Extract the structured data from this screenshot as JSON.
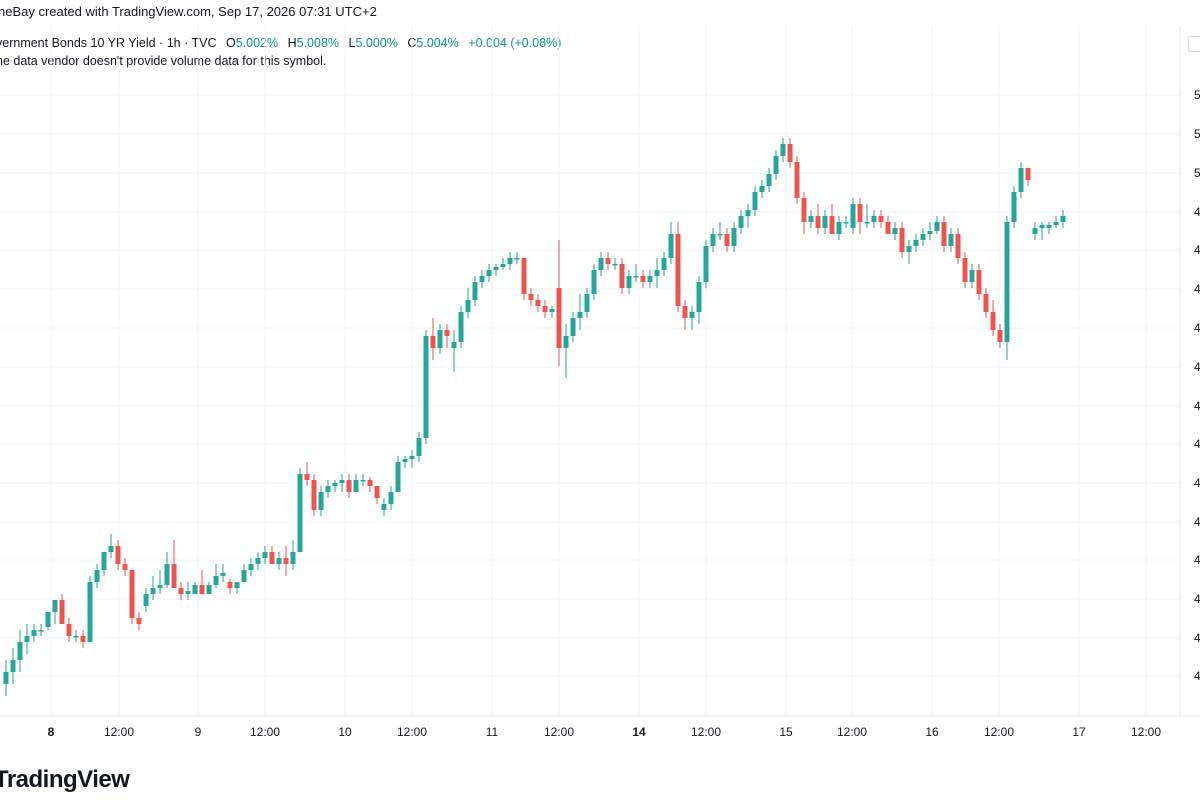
{
  "header": {
    "attribution": "heBay created with TradingView.com, Sep 17, 2026 07:31 UTC+2"
  },
  "legend": {
    "symbol": "vernment Bonds 10 YR Yield · 1h · TVC",
    "o_label": "O",
    "o_value": "5.002%",
    "h_label": "H",
    "h_value": "5.008%",
    "l_label": "L",
    "l_value": "5.000%",
    "c_label": "C",
    "c_value": "5.004%",
    "change": "+0.004 (+0.08%)"
  },
  "notice": "he data vendor doesn't provide volume data for this symbol.",
  "brand": "TradingView",
  "colors": {
    "up": "#26a69a",
    "down": "#ef5350",
    "grid": "#f0f3fa",
    "text": "#131722"
  },
  "chart_data": {
    "type": "candlestick",
    "title": "",
    "xlabel": "",
    "ylabel": "",
    "x_ticks": [
      "8",
      "12:00",
      "9",
      "12:00",
      "10",
      "12:00",
      "11",
      "12:00",
      "14",
      "12:00",
      "15",
      "12:00",
      "16",
      "12:00",
      "17",
      "12:00"
    ],
    "x_tick_bold": [
      "8",
      "14"
    ],
    "y_ticks_visible": [
      "5",
      "5",
      "5",
      "4",
      "4",
      "4",
      "4",
      "4",
      "4",
      "4",
      "4",
      "4",
      "4",
      "4",
      "4",
      "4"
    ],
    "y_range_relative": [
      0,
      100
    ],
    "candles": [
      {
        "o": 2.0,
        "h": 6.0,
        "l": 0.0,
        "c": 4.0
      },
      {
        "o": 4.0,
        "h": 8.0,
        "l": 2.0,
        "c": 6.0
      },
      {
        "o": 6.0,
        "h": 11.0,
        "l": 4.0,
        "c": 9.0
      },
      {
        "o": 9.0,
        "h": 12.0,
        "l": 7.0,
        "c": 10.0
      },
      {
        "o": 10.0,
        "h": 12.0,
        "l": 9.0,
        "c": 11.0
      },
      {
        "o": 11.0,
        "h": 12.0,
        "l": 10.0,
        "c": 11.0
      },
      {
        "o": 11.5,
        "h": 14.0,
        "l": 11.0,
        "c": 14.0
      },
      {
        "o": 14.0,
        "h": 16.0,
        "l": 12.0,
        "c": 16.0
      },
      {
        "o": 16.0,
        "h": 17.0,
        "l": 12.0,
        "c": 12.0
      },
      {
        "o": 12.0,
        "h": 13.0,
        "l": 9.0,
        "c": 10.0
      },
      {
        "o": 10.0,
        "h": 11.0,
        "l": 9.0,
        "c": 10.0
      },
      {
        "o": 10.0,
        "h": 11.0,
        "l": 8.0,
        "c": 9.0
      },
      {
        "o": 9.0,
        "h": 20.0,
        "l": 9.0,
        "c": 19.0
      },
      {
        "o": 19.0,
        "h": 22.0,
        "l": 18.0,
        "c": 21.0
      },
      {
        "o": 21.0,
        "h": 24.0,
        "l": 20.0,
        "c": 24.0
      },
      {
        "o": 24.0,
        "h": 27.0,
        "l": 23.0,
        "c": 25.0
      },
      {
        "o": 25.0,
        "h": 26.0,
        "l": 21.0,
        "c": 22.0
      },
      {
        "o": 22.0,
        "h": 23.0,
        "l": 20.0,
        "c": 21.0
      },
      {
        "o": 21.0,
        "h": 21.0,
        "l": 12.0,
        "c": 13.0
      },
      {
        "o": 13.0,
        "h": 14.0,
        "l": 11.0,
        "c": 12.0
      },
      {
        "o": 15.0,
        "h": 18.0,
        "l": 14.0,
        "c": 17.0
      },
      {
        "o": 17.0,
        "h": 20.0,
        "l": 16.0,
        "c": 18.0
      },
      {
        "o": 18.0,
        "h": 21.0,
        "l": 17.0,
        "c": 18.5
      },
      {
        "o": 18.5,
        "h": 24.0,
        "l": 18.0,
        "c": 22.0
      },
      {
        "o": 22.0,
        "h": 26.0,
        "l": 18.0,
        "c": 18.0
      },
      {
        "o": 18.0,
        "h": 19.0,
        "l": 16.0,
        "c": 17.0
      },
      {
        "o": 17.0,
        "h": 19.0,
        "l": 16.0,
        "c": 17.5
      },
      {
        "o": 17.0,
        "h": 19.0,
        "l": 17.0,
        "c": 18.5
      },
      {
        "o": 18.5,
        "h": 21.0,
        "l": 17.0,
        "c": 17.0
      },
      {
        "o": 17.0,
        "h": 19.0,
        "l": 17.0,
        "c": 18.5
      },
      {
        "o": 18.5,
        "h": 22.0,
        "l": 18.0,
        "c": 20.0
      },
      {
        "o": 20.0,
        "h": 22.0,
        "l": 19.0,
        "c": 20.5
      },
      {
        "o": 19.0,
        "h": 19.5,
        "l": 17.0,
        "c": 18.0
      },
      {
        "o": 18.0,
        "h": 19.0,
        "l": 17.0,
        "c": 19.0
      },
      {
        "o": 19.0,
        "h": 22.0,
        "l": 19.0,
        "c": 21.0
      },
      {
        "o": 21.0,
        "h": 23.0,
        "l": 20.0,
        "c": 22.0
      },
      {
        "o": 22.0,
        "h": 24.0,
        "l": 21.0,
        "c": 23.0
      },
      {
        "o": 23.0,
        "h": 25.0,
        "l": 22.0,
        "c": 24.0
      },
      {
        "o": 24.0,
        "h": 25.0,
        "l": 22.0,
        "c": 22.0
      },
      {
        "o": 22.0,
        "h": 24.0,
        "l": 21.0,
        "c": 23.0
      },
      {
        "o": 23.0,
        "h": 25.0,
        "l": 20.0,
        "c": 22.0
      },
      {
        "o": 22.0,
        "h": 26.0,
        "l": 21.0,
        "c": 24.0
      },
      {
        "o": 24.0,
        "h": 38.0,
        "l": 24.0,
        "c": 37.0
      },
      {
        "o": 37.0,
        "h": 39.0,
        "l": 35.0,
        "c": 36.0
      },
      {
        "o": 36.0,
        "h": 37.0,
        "l": 30.0,
        "c": 31.0
      },
      {
        "o": 31.0,
        "h": 35.0,
        "l": 30.0,
        "c": 34.0
      },
      {
        "o": 34.0,
        "h": 36.0,
        "l": 33.0,
        "c": 35.0
      },
      {
        "o": 35.0,
        "h": 36.0,
        "l": 34.0,
        "c": 35.5
      },
      {
        "o": 35.5,
        "h": 37.0,
        "l": 34.0,
        "c": 36.0
      },
      {
        "o": 36.0,
        "h": 37.0,
        "l": 33.0,
        "c": 34.0
      },
      {
        "o": 34.0,
        "h": 37.0,
        "l": 34.0,
        "c": 36.0
      },
      {
        "o": 36.0,
        "h": 37.0,
        "l": 35.0,
        "c": 36.0
      },
      {
        "o": 36.0,
        "h": 36.5,
        "l": 34.0,
        "c": 35.0
      },
      {
        "o": 35.0,
        "h": 35.0,
        "l": 32.0,
        "c": 33.0
      },
      {
        "o": 31.0,
        "h": 33.0,
        "l": 30.0,
        "c": 32.0
      },
      {
        "o": 32.0,
        "h": 35.0,
        "l": 31.0,
        "c": 34.0
      },
      {
        "o": 34.0,
        "h": 40.0,
        "l": 34.0,
        "c": 39.0
      },
      {
        "o": 39.0,
        "h": 40.0,
        "l": 38.0,
        "c": 39.5
      },
      {
        "o": 39.5,
        "h": 41.0,
        "l": 38.0,
        "c": 40.0
      },
      {
        "o": 40.0,
        "h": 44.0,
        "l": 39.0,
        "c": 43.0
      },
      {
        "o": 43.0,
        "h": 61.0,
        "l": 42.0,
        "c": 60.0
      },
      {
        "o": 60.0,
        "h": 63.0,
        "l": 56.0,
        "c": 58.0
      },
      {
        "o": 58.0,
        "h": 62.0,
        "l": 57.0,
        "c": 61.0
      },
      {
        "o": 61.0,
        "h": 62.0,
        "l": 58.0,
        "c": 60.0
      },
      {
        "o": 58.0,
        "h": 61.0,
        "l": 54.0,
        "c": 59.0
      },
      {
        "o": 59.0,
        "h": 65.0,
        "l": 58.0,
        "c": 64.0
      },
      {
        "o": 64.0,
        "h": 68.0,
        "l": 63.0,
        "c": 66.0
      },
      {
        "o": 66.0,
        "h": 70.0,
        "l": 65.0,
        "c": 69.0
      },
      {
        "o": 69.0,
        "h": 71.0,
        "l": 68.0,
        "c": 70.0
      },
      {
        "o": 70.0,
        "h": 72.0,
        "l": 69.0,
        "c": 71.0
      },
      {
        "o": 71.0,
        "h": 72.0,
        "l": 70.0,
        "c": 71.5
      },
      {
        "o": 71.5,
        "h": 73.0,
        "l": 71.0,
        "c": 72.0
      },
      {
        "o": 72.0,
        "h": 74.0,
        "l": 71.0,
        "c": 73.0
      },
      {
        "o": 73.0,
        "h": 74.0,
        "l": 72.0,
        "c": 73.0
      },
      {
        "o": 73.0,
        "h": 73.0,
        "l": 66.0,
        "c": 67.0
      },
      {
        "o": 67.0,
        "h": 68.0,
        "l": 65.0,
        "c": 66.0
      },
      {
        "o": 66.0,
        "h": 67.0,
        "l": 64.0,
        "c": 65.0
      },
      {
        "o": 65.0,
        "h": 66.0,
        "l": 63.0,
        "c": 64.0
      },
      {
        "o": 64.0,
        "h": 65.0,
        "l": 63.0,
        "c": 64.5
      },
      {
        "o": 68.0,
        "h": 76.0,
        "l": 55.0,
        "c": 58.0
      },
      {
        "o": 58.0,
        "h": 62.0,
        "l": 53.0,
        "c": 60.0
      },
      {
        "o": 60.0,
        "h": 64.0,
        "l": 59.0,
        "c": 63.0
      },
      {
        "o": 63.0,
        "h": 67.0,
        "l": 61.0,
        "c": 64.0
      },
      {
        "o": 64.0,
        "h": 68.0,
        "l": 63.0,
        "c": 67.0
      },
      {
        "o": 67.0,
        "h": 72.0,
        "l": 66.0,
        "c": 71.0
      },
      {
        "o": 71.0,
        "h": 74.0,
        "l": 70.0,
        "c": 73.0
      },
      {
        "o": 73.0,
        "h": 74.0,
        "l": 71.0,
        "c": 72.0
      },
      {
        "o": 72.0,
        "h": 73.0,
        "l": 71.0,
        "c": 72.0
      },
      {
        "o": 72.0,
        "h": 73.0,
        "l": 67.0,
        "c": 68.0
      },
      {
        "o": 68.0,
        "h": 71.0,
        "l": 67.0,
        "c": 70.0
      },
      {
        "o": 70.0,
        "h": 72.0,
        "l": 69.0,
        "c": 70.0
      },
      {
        "o": 70.0,
        "h": 71.0,
        "l": 68.0,
        "c": 69.0
      },
      {
        "o": 69.0,
        "h": 71.0,
        "l": 68.0,
        "c": 70.0
      },
      {
        "o": 70.0,
        "h": 73.0,
        "l": 68.0,
        "c": 71.0
      },
      {
        "o": 71.0,
        "h": 74.0,
        "l": 70.0,
        "c": 73.0
      },
      {
        "o": 73.0,
        "h": 79.0,
        "l": 72.0,
        "c": 77.0
      },
      {
        "o": 77.0,
        "h": 79.0,
        "l": 64.0,
        "c": 65.0
      },
      {
        "o": 65.0,
        "h": 66.0,
        "l": 61.0,
        "c": 63.0
      },
      {
        "o": 63.0,
        "h": 65.0,
        "l": 61.0,
        "c": 64.0
      },
      {
        "o": 64.0,
        "h": 70.0,
        "l": 62.0,
        "c": 69.0
      },
      {
        "o": 69.0,
        "h": 76.0,
        "l": 68.0,
        "c": 75.0
      },
      {
        "o": 75.0,
        "h": 78.0,
        "l": 74.0,
        "c": 77.0
      },
      {
        "o": 77.0,
        "h": 79.0,
        "l": 76.0,
        "c": 77.0
      },
      {
        "o": 77.0,
        "h": 78.0,
        "l": 74.0,
        "c": 75.0
      },
      {
        "o": 75.0,
        "h": 79.0,
        "l": 74.0,
        "c": 78.0
      },
      {
        "o": 78.0,
        "h": 81.0,
        "l": 77.0,
        "c": 80.0
      },
      {
        "o": 80.0,
        "h": 82.0,
        "l": 78.0,
        "c": 81.0
      },
      {
        "o": 81.0,
        "h": 85.0,
        "l": 80.0,
        "c": 84.0
      },
      {
        "o": 84.0,
        "h": 86.0,
        "l": 83.0,
        "c": 85.0
      },
      {
        "o": 85.0,
        "h": 88.0,
        "l": 84.0,
        "c": 87.0
      },
      {
        "o": 87.0,
        "h": 91.0,
        "l": 86.0,
        "c": 90.0
      },
      {
        "o": 90.0,
        "h": 93.0,
        "l": 89.0,
        "c": 92.0
      },
      {
        "o": 92.0,
        "h": 93.0,
        "l": 88.0,
        "c": 89.0
      },
      {
        "o": 89.0,
        "h": 90.0,
        "l": 82.0,
        "c": 83.0
      },
      {
        "o": 83.0,
        "h": 84.0,
        "l": 77.0,
        "c": 79.0
      },
      {
        "o": 79.0,
        "h": 81.0,
        "l": 78.0,
        "c": 80.0
      },
      {
        "o": 80.0,
        "h": 82.0,
        "l": 77.0,
        "c": 78.0
      },
      {
        "o": 78.0,
        "h": 81.0,
        "l": 77.0,
        "c": 80.0
      },
      {
        "o": 80.0,
        "h": 82.0,
        "l": 77.0,
        "c": 77.0
      },
      {
        "o": 77.0,
        "h": 80.0,
        "l": 76.0,
        "c": 79.0
      },
      {
        "o": 79.0,
        "h": 80.0,
        "l": 78.0,
        "c": 79.0
      },
      {
        "o": 78.0,
        "h": 83.0,
        "l": 77.0,
        "c": 82.0
      },
      {
        "o": 82.0,
        "h": 83.0,
        "l": 77.0,
        "c": 79.0
      },
      {
        "o": 79.0,
        "h": 82.0,
        "l": 78.0,
        "c": 79.0
      },
      {
        "o": 79.0,
        "h": 81.0,
        "l": 78.0,
        "c": 80.0
      },
      {
        "o": 80.0,
        "h": 81.0,
        "l": 78.0,
        "c": 79.0
      },
      {
        "o": 79.0,
        "h": 80.0,
        "l": 77.0,
        "c": 77.0
      },
      {
        "o": 77.0,
        "h": 79.0,
        "l": 76.0,
        "c": 78.0
      },
      {
        "o": 78.0,
        "h": 79.0,
        "l": 73.0,
        "c": 74.0
      },
      {
        "o": 74.0,
        "h": 76.0,
        "l": 72.0,
        "c": 75.0
      },
      {
        "o": 75.0,
        "h": 77.0,
        "l": 74.0,
        "c": 76.0
      },
      {
        "o": 76.0,
        "h": 78.0,
        "l": 75.0,
        "c": 77.0
      },
      {
        "o": 77.0,
        "h": 79.0,
        "l": 76.0,
        "c": 77.5
      },
      {
        "o": 77.5,
        "h": 80.0,
        "l": 77.0,
        "c": 79.0
      },
      {
        "o": 79.0,
        "h": 80.0,
        "l": 74.0,
        "c": 75.0
      },
      {
        "o": 75.0,
        "h": 78.0,
        "l": 74.0,
        "c": 77.0
      },
      {
        "o": 77.0,
        "h": 78.0,
        "l": 72.0,
        "c": 73.0
      },
      {
        "o": 73.0,
        "h": 74.0,
        "l": 68.0,
        "c": 69.0
      },
      {
        "o": 69.0,
        "h": 72.0,
        "l": 68.0,
        "c": 71.0
      },
      {
        "o": 71.0,
        "h": 72.0,
        "l": 66.0,
        "c": 67.0
      },
      {
        "o": 67.0,
        "h": 68.0,
        "l": 63.0,
        "c": 64.0
      },
      {
        "o": 64.0,
        "h": 66.0,
        "l": 60.0,
        "c": 61.0
      },
      {
        "o": 61.0,
        "h": 62.0,
        "l": 58.0,
        "c": 59.0
      },
      {
        "o": 59.0,
        "h": 80.0,
        "l": 56.0,
        "c": 79.0
      },
      {
        "o": 79.0,
        "h": 85.0,
        "l": 78.0,
        "c": 84.0
      },
      {
        "o": 84.0,
        "h": 89.0,
        "l": 83.0,
        "c": 88.0
      },
      {
        "o": 88.0,
        "h": 88.0,
        "l": 85.0,
        "c": 86.0
      },
      {
        "o": 77.0,
        "h": 79.0,
        "l": 76.0,
        "c": 78.0
      },
      {
        "o": 78.0,
        "h": 79.0,
        "l": 76.0,
        "c": 78.5
      },
      {
        "o": 78.0,
        "h": 79.0,
        "l": 77.0,
        "c": 78.5
      },
      {
        "o": 78.5,
        "h": 80.0,
        "l": 78.0,
        "c": 79.0
      },
      {
        "o": 79.0,
        "h": 81.0,
        "l": 78.0,
        "c": 80.0
      }
    ]
  }
}
